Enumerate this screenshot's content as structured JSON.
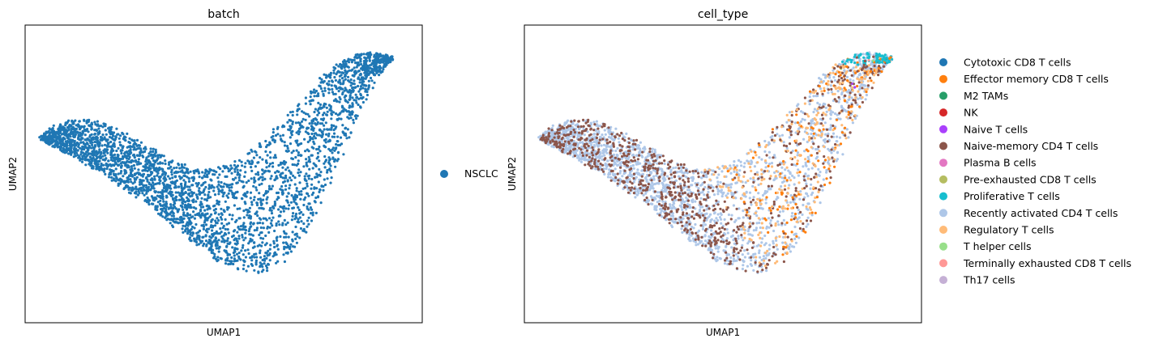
{
  "chart_data": [
    {
      "type": "scatter",
      "title": "batch",
      "xlabel": "UMAP1",
      "ylabel": "UMAP2",
      "grid": false,
      "ticks": false,
      "legend_placement": "right",
      "series": [
        {
          "name": "NSCLC",
          "color": "#1f77b4"
        }
      ]
    },
    {
      "type": "scatter",
      "title": "cell_type",
      "xlabel": "UMAP1",
      "ylabel": "UMAP2",
      "grid": false,
      "ticks": false,
      "legend_placement": "right",
      "series": [
        {
          "name": "Cytotoxic CD8 T cells",
          "color": "#1f77b4"
        },
        {
          "name": "Effector memory CD8 T cells",
          "color": "#ff7f0e"
        },
        {
          "name": "M2 TAMs",
          "color": "#279e68"
        },
        {
          "name": "NK",
          "color": "#d62728"
        },
        {
          "name": "Naive T cells",
          "color": "#aa40fc"
        },
        {
          "name": "Naive-memory CD4 T cells",
          "color": "#8c564b"
        },
        {
          "name": "Plasma B cells",
          "color": "#e377c2"
        },
        {
          "name": "Pre-exhausted CD8 T cells",
          "color": "#b5bd61"
        },
        {
          "name": "Proliferative T cells",
          "color": "#17becf"
        },
        {
          "name": "Recently activated CD4 T cells",
          "color": "#aec7e8"
        },
        {
          "name": "Regulatory T cells",
          "color": "#ffbb78"
        },
        {
          "name": "T helper cells",
          "color": "#98df8a"
        },
        {
          "name": "Terminally exhausted CD8 T cells",
          "color": "#ff9896"
        },
        {
          "name": "Th17 cells",
          "color": "#c5b0d5"
        }
      ]
    }
  ]
}
